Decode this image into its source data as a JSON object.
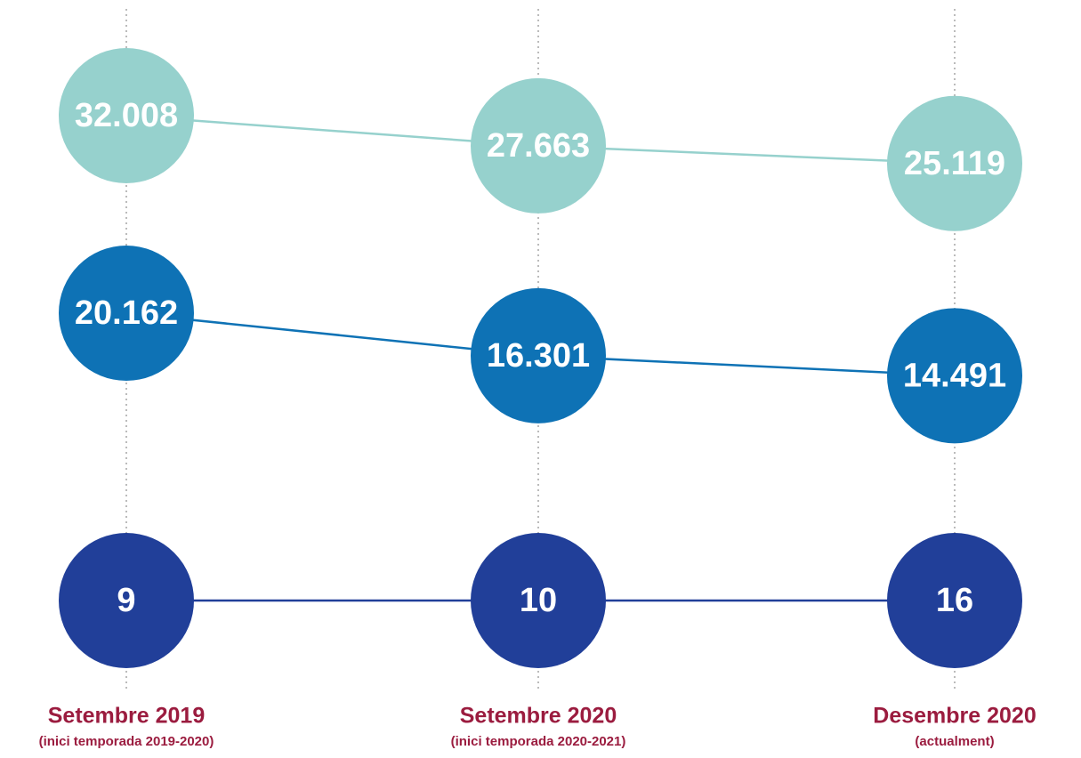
{
  "chart_data": {
    "type": "bubble-line",
    "categories": [
      "Setembre 2019",
      "Setembre 2020",
      "Desembre 2020"
    ],
    "category_notes": [
      "(inici temporada 2019-2020)",
      "(inici temporada 2020-2021)",
      "(actualment)"
    ],
    "series": [
      {
        "color": "#96d1cd",
        "values": [
          32008,
          27663,
          25119
        ],
        "value_labels": [
          "32.008",
          "27.663",
          "25.119"
        ]
      },
      {
        "color": "#0e72b5",
        "values": [
          20162,
          16301,
          14491
        ],
        "value_labels": [
          "20.162",
          "16.301",
          "14.491"
        ]
      },
      {
        "color": "#213f99",
        "values": [
          9,
          10,
          16
        ]
      }
    ],
    "label_color": "#9b1c3f"
  }
}
